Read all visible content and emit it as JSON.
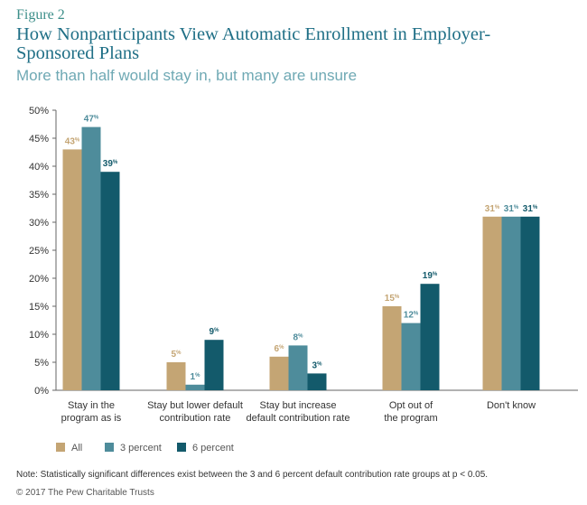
{
  "figure_label": "Figure 2",
  "title": "How Nonparticipants View Automatic Enrollment in Employer-Sponsored Plans",
  "subtitle": "More than half would stay in, but many are unsure",
  "note": "Note: Statistically significant differences exist between the 3 and 6 percent default contribution rate groups at p < 0.05.",
  "copyright": "© 2017 The Pew Charitable Trusts",
  "chart_data": {
    "type": "bar",
    "categories": [
      [
        "Stay in the",
        "program as is"
      ],
      [
        "Stay but lower default",
        "contribution rate"
      ],
      [
        "Stay but increase",
        "default contribution rate"
      ],
      [
        "Opt out of",
        "the program"
      ],
      [
        "Don't know"
      ]
    ],
    "series": [
      {
        "name": "All",
        "color": "#c4a574",
        "values": [
          43,
          5,
          6,
          15,
          31
        ]
      },
      {
        "name": "3 percent",
        "color": "#4e8c9b",
        "values": [
          47,
          1,
          8,
          12,
          31
        ]
      },
      {
        "name": "6 percent",
        "color": "#135a6b",
        "values": [
          39,
          9,
          3,
          19,
          31
        ]
      }
    ],
    "value_suffix": "%",
    "ylim": [
      0,
      50
    ],
    "yticks": [
      "0%",
      "5%",
      "10%",
      "15%",
      "20%",
      "25%",
      "30%",
      "35%",
      "40%",
      "45%",
      "50%"
    ],
    "grid": false,
    "legend": "bottom-left"
  }
}
